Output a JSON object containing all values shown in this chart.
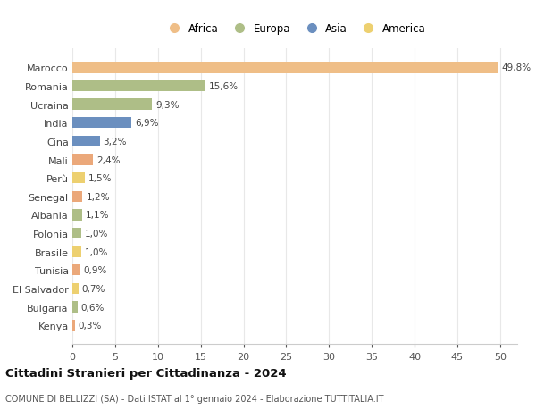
{
  "countries": [
    "Marocco",
    "Romania",
    "Ucraina",
    "India",
    "Cina",
    "Mali",
    "Perù",
    "Senegal",
    "Albania",
    "Polonia",
    "Brasile",
    "Tunisia",
    "El Salvador",
    "Bulgaria",
    "Kenya"
  ],
  "values": [
    49.8,
    15.6,
    9.3,
    6.9,
    3.2,
    2.4,
    1.5,
    1.2,
    1.1,
    1.0,
    1.0,
    0.9,
    0.7,
    0.6,
    0.3
  ],
  "labels": [
    "49,8%",
    "15,6%",
    "9,3%",
    "6,9%",
    "3,2%",
    "2,4%",
    "1,5%",
    "1,2%",
    "1,1%",
    "1,0%",
    "1,0%",
    "0,9%",
    "0,7%",
    "0,6%",
    "0,3%"
  ],
  "colors": [
    "#EFBE87",
    "#AEBE87",
    "#AEBE87",
    "#6B8FBF",
    "#6B8FBF",
    "#EBA87A",
    "#EDD070",
    "#EBA87A",
    "#AEBE87",
    "#AEBE87",
    "#EDD070",
    "#EBA87A",
    "#EDD070",
    "#AEBE87",
    "#EBA87A"
  ],
  "continent_colors": {
    "Africa": "#EFBE87",
    "Europa": "#AEBE87",
    "Asia": "#6B8FBF",
    "America": "#EDD070"
  },
  "title": "Cittadini Stranieri per Cittadinanza - 2024",
  "subtitle": "COMUNE DI BELLIZZI (SA) - Dati ISTAT al 1° gennaio 2024 - Elaborazione TUTTITALIA.IT",
  "xlim": [
    0,
    52
  ],
  "xticks": [
    0,
    5,
    10,
    15,
    20,
    25,
    30,
    35,
    40,
    45,
    50
  ],
  "background_color": "#ffffff",
  "grid_color": "#e8e8e8"
}
